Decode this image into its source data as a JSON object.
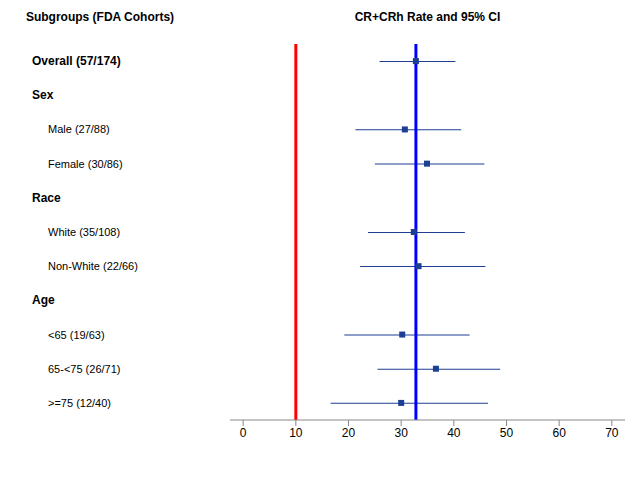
{
  "chart_data": {
    "type": "forest",
    "title": "CR+CRh Rate and 95% CI",
    "row_header": "Subgroups (FDA Cohorts)",
    "categories": [
      "Overall (57/174)",
      "Sex",
      "Male (27/88)",
      "Female (30/86)",
      "Race",
      "White (35/108)",
      "Non-White (22/66)",
      "Age",
      "<65 (19/63)",
      "65-<75 (26/71)",
      ">=75 (12/40)"
    ],
    "values": [
      32.8,
      null,
      30.7,
      34.9,
      null,
      32.4,
      33.3,
      null,
      30.2,
      36.6,
      30.0
    ],
    "ci_low": [
      25.9,
      null,
      21.3,
      25.0,
      null,
      23.7,
      22.2,
      null,
      19.2,
      25.5,
      16.6
    ],
    "ci_high": [
      40.3,
      null,
      41.4,
      45.8,
      null,
      42.1,
      46.0,
      null,
      43.0,
      48.8,
      46.5
    ],
    "color": "#1c3f94",
    "marker": "square",
    "xlim": [
      -2.5,
      72.5
    ],
    "xticks": [
      0,
      10,
      20,
      30,
      40,
      50,
      60,
      70
    ],
    "reference_lines": [
      {
        "value": 10,
        "color": "#ff0000"
      },
      {
        "value": 32.8,
        "color": "#0000ff"
      }
    ]
  }
}
